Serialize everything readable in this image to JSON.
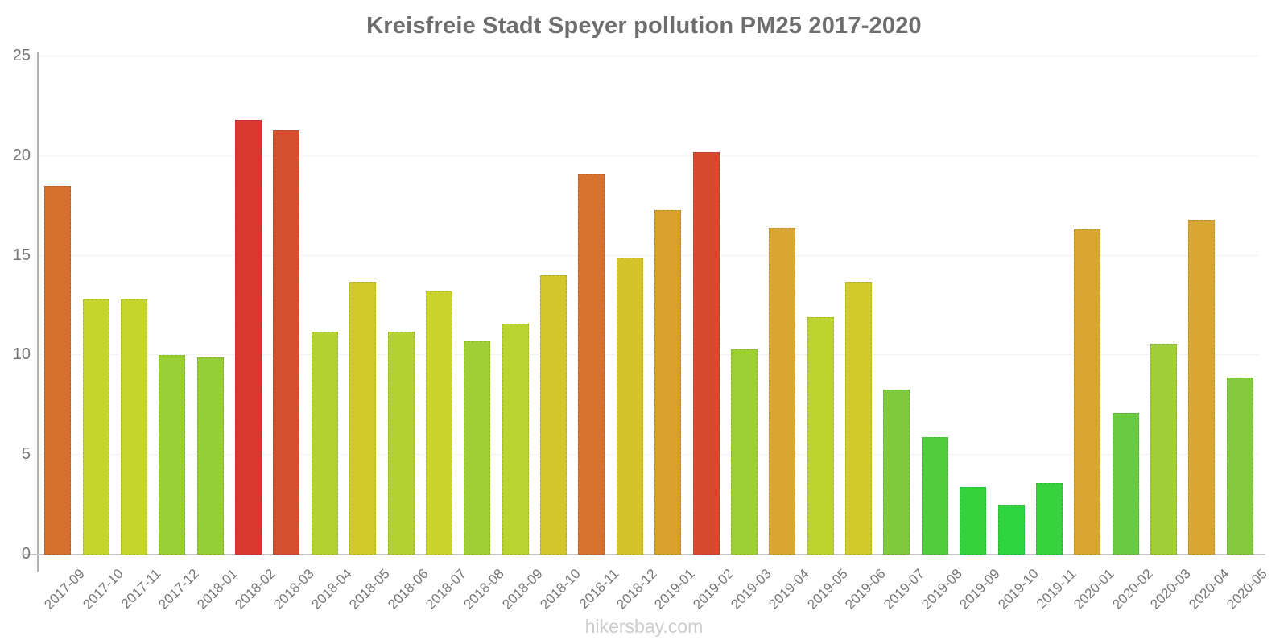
{
  "title": "Kreisfreie Stadt Speyer pollution PM25 2017-2020",
  "footer": "hikersbay.com",
  "chart_data": {
    "type": "bar",
    "title": "Kreisfreie Stadt Speyer pollution PM25 2017-2020",
    "xlabel": "",
    "ylabel": "",
    "ylim": [
      0,
      25
    ],
    "yticks": [
      0,
      5,
      10,
      15,
      20,
      25
    ],
    "grid": true,
    "legend": "none",
    "categories": [
      "2017-09",
      "2017-10",
      "2017-11",
      "2017-12",
      "2018-01",
      "2018-02",
      "2018-03",
      "2018-04",
      "2018-05",
      "2018-06",
      "2018-07",
      "2018-08",
      "2018-09",
      "2018-10",
      "2018-11",
      "2018-12",
      "2019-01",
      "2019-02",
      "2019-03",
      "2019-04",
      "2019-05",
      "2019-06",
      "2019-07",
      "2019-08",
      "2019-09",
      "2019-10",
      "2019-11",
      "2020-01",
      "2020-02",
      "2020-03",
      "2020-04",
      "2020-05"
    ],
    "values": [
      18.5,
      12.8,
      12.8,
      10.0,
      9.9,
      21.8,
      21.3,
      11.2,
      13.7,
      11.2,
      13.2,
      10.7,
      11.6,
      14.0,
      19.1,
      14.9,
      17.3,
      20.2,
      10.3,
      16.4,
      11.9,
      13.7,
      8.3,
      5.9,
      3.4,
      2.5,
      3.6,
      16.3,
      7.1,
      10.6,
      16.8,
      8.9
    ],
    "bar_colors": [
      "#D7702E",
      "#C6D52C",
      "#C6D52C",
      "#98CE36",
      "#94CD37",
      "#D93831",
      "#D5502F",
      "#B3D231",
      "#D0CA2B",
      "#B3D231",
      "#CBD42D",
      "#A0CF35",
      "#B9D330",
      "#D2C62C",
      "#D7712E",
      "#D4C32A",
      "#D8A02C",
      "#D84A30",
      "#9CD035",
      "#D9A632",
      "#BDD430",
      "#D0C92B",
      "#7FC93C",
      "#52CC3E",
      "#35D23D",
      "#2ED43D",
      "#37D23D",
      "#D9A632",
      "#68CA40",
      "#9FCE37",
      "#D9A632",
      "#84C93C"
    ],
    "colors_meaning": {
      "red": "#D93831",
      "orange": "#D7702E",
      "amber": "#D9A632",
      "yellow": "#D2C62C",
      "yellow_green": "#C6D52C",
      "green": "#84C93C",
      "bright_green": "#2ED43D"
    },
    "axis_color": "#b0b0b0",
    "gridline_color": "#f2f2f2",
    "tick_label_color": "#757575",
    "title_color": "#6d6d6d",
    "footer_color": "#cccccc",
    "background": "#ffffff"
  }
}
